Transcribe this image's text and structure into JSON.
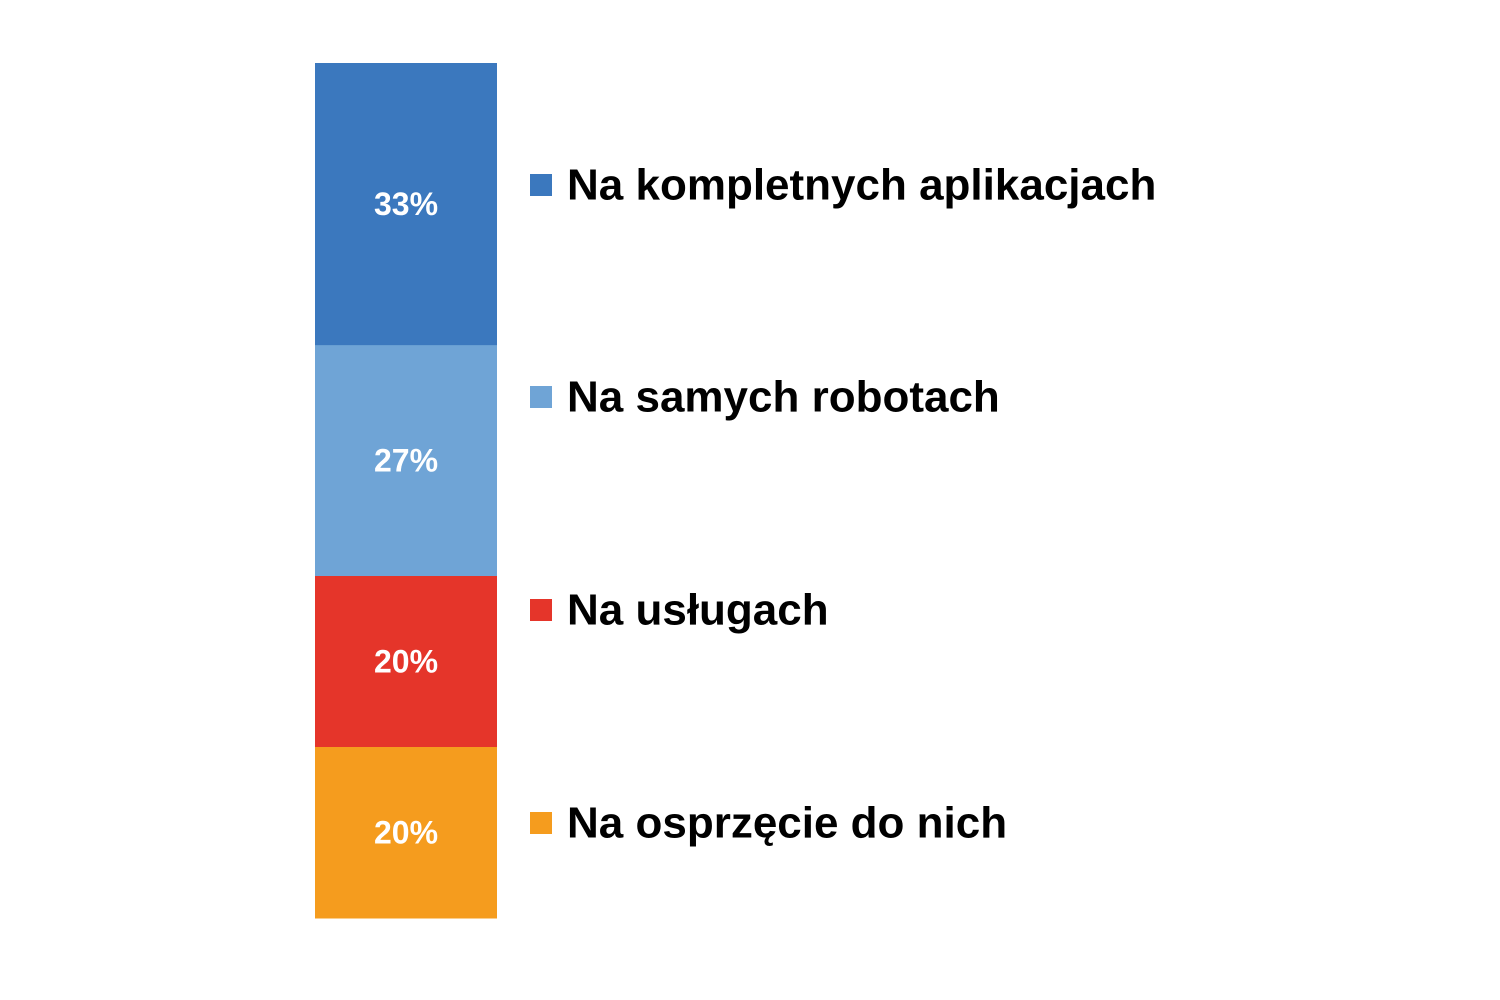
{
  "chart_data": {
    "type": "bar",
    "orientation": "stacked-vertical",
    "categories": [
      ""
    ],
    "series": [
      {
        "name": "Na kompletnych aplikacjach",
        "values": [
          33
        ],
        "label": "33%",
        "color": "#3b78be"
      },
      {
        "name": "Na samych robotach",
        "values": [
          27
        ],
        "label": "27%",
        "color": "#6fa4d6"
      },
      {
        "name": "Na usługach",
        "values": [
          20
        ],
        "label": "20%",
        "color": "#e5352a"
      },
      {
        "name": "Na osprzęcie do nich",
        "values": [
          20
        ],
        "label": "20%",
        "color": "#f59c1e"
      }
    ],
    "title": "",
    "xlabel": "",
    "ylabel": "",
    "legend_position": "right",
    "grid": false
  }
}
